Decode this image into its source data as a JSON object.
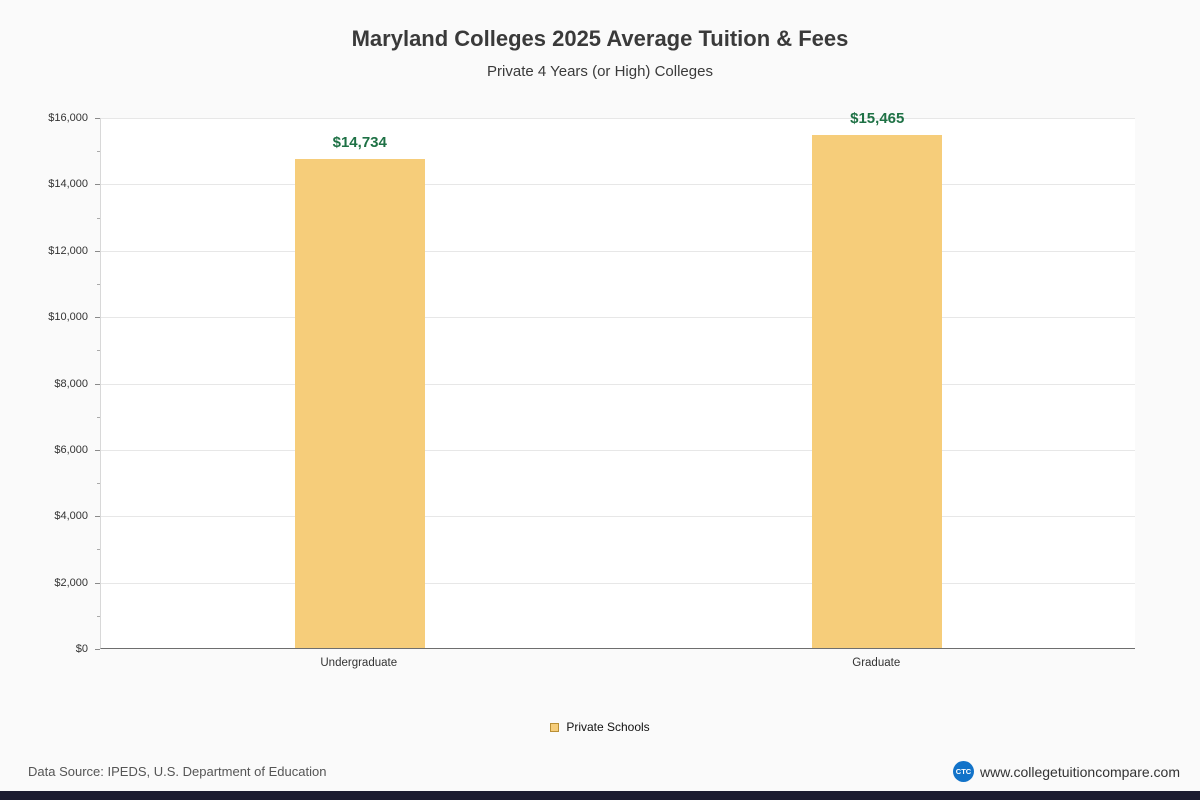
{
  "header": {
    "title": "Maryland Colleges 2025 Average Tuition & Fees",
    "subtitle": "Private 4 Years (or High)  Colleges"
  },
  "legend": {
    "label": "Private Schools"
  },
  "footer": {
    "source": "Data Source: IPEDS, U.S. Department of Education",
    "site": "www.collegetuitioncompare.com",
    "logo_text": "CTC"
  },
  "colors": {
    "bar": "#f6cd7a",
    "bar_border": "#b98f35",
    "value_label": "#1e7145",
    "logo_blue": "#1273c9",
    "bottom_strip": "#1c1c30"
  },
  "chart_data": {
    "type": "bar",
    "title": "Maryland Colleges 2025 Average Tuition & Fees",
    "subtitle": "Private 4 Years (or High)  Colleges",
    "categories": [
      "Undergraduate",
      "Graduate"
    ],
    "values": [
      14734,
      15465
    ],
    "value_labels": [
      "$14,734",
      "$15,465"
    ],
    "series_name": "Private Schools",
    "xlabel": "",
    "ylabel": "",
    "ylim": [
      0,
      16000
    ],
    "ytick_interval": 2000,
    "ytick_labels": [
      "$0",
      "$2,000",
      "$4,000",
      "$6,000",
      "$8,000",
      "$10,000",
      "$12,000",
      "$14,000",
      "$16,000"
    ],
    "grid": true,
    "legend_position": "bottom"
  }
}
